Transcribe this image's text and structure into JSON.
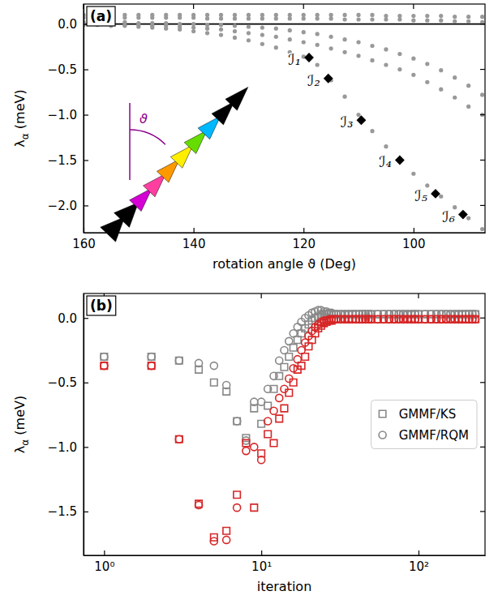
{
  "chart_data": [
    {
      "type": "scatter",
      "panel": "(a)",
      "xlabel": "rotation angle ϑ (Deg)",
      "ylabel": "λα (meV)",
      "inset_label": "ϑ",
      "xlim": [
        160,
        87
      ],
      "ylim": [
        -2.3,
        0.22
      ],
      "xticks": [
        160,
        140,
        120,
        100
      ],
      "yticks": [
        {
          "value": 0,
          "label": "0.0"
        },
        {
          "value": -0.5,
          "label": "−0.5"
        },
        {
          "value": -1,
          "label": "−1.0"
        },
        {
          "value": -1.5,
          "label": "−1.5"
        },
        {
          "value": -2,
          "label": "−2.0"
        }
      ],
      "hline": 0,
      "x": [
        160,
        157.5,
        155,
        152.5,
        150,
        147.5,
        145,
        142.5,
        140,
        137.5,
        135,
        132.5,
        130,
        127.5,
        125,
        122.5,
        120,
        117.5,
        115,
        112.5,
        110,
        107.5,
        105,
        102.5,
        100,
        97.5,
        95,
        92.5,
        90,
        87.5
      ],
      "series": [
        {
          "color": "#999999",
          "marker": "dot",
          "values": [
            0.1,
            0.1,
            0.1,
            0.1,
            0.1,
            0.1,
            0.1,
            0.1,
            0.1,
            0.1,
            0.1,
            0.1,
            0.1,
            0.1,
            0.1,
            0.1,
            0.1,
            0.1,
            0.1,
            0.1,
            0.1,
            0.1,
            0.09,
            0.09,
            0.09,
            0.09,
            0.09,
            0.08,
            0.08,
            0.08
          ]
        },
        {
          "color": "#999999",
          "marker": "dot",
          "values": [
            0.07,
            0.07,
            0.07,
            0.07,
            0.07,
            0.07,
            0.07,
            0.07,
            0.07,
            0.06,
            0.06,
            0.06,
            0.06,
            0.06,
            0.06,
            0.06,
            0.06,
            0.06,
            0.06,
            0.05,
            0.05,
            0.05,
            0.05,
            0.05,
            0.04,
            0.04,
            0.04,
            0.03,
            0.03,
            0.02
          ]
        },
        {
          "color": "#999999",
          "marker": "dot",
          "values": [
            0.02,
            0.02,
            0.02,
            0.02,
            0.01,
            0.01,
            0.01,
            0,
            0,
            -0.01,
            -0.01,
            -0.02,
            -0.03,
            -0.04,
            -0.05,
            -0.07,
            -0.09,
            -0.11,
            -0.14,
            -0.17,
            -0.2,
            -0.24,
            -0.28,
            -0.33,
            -0.38,
            -0.44,
            -0.51,
            -0.59,
            -0.68,
            -0.78
          ]
        },
        {
          "color": "#999999",
          "marker": "dot",
          "values": [
            0,
            0,
            0,
            -0.01,
            -0.01,
            -0.02,
            -0.02,
            -0.03,
            -0.04,
            -0.05,
            -0.06,
            -0.08,
            -0.1,
            -0.12,
            -0.14,
            -0.17,
            -0.2,
            -0.23,
            -0.27,
            -0.31,
            -0.35,
            -0.4,
            -0.45,
            -0.5,
            -0.56,
            -0.64,
            -0.72,
            -0.81,
            -0.91,
            -1.0
          ]
        },
        {
          "color": "#999999",
          "marker": "dot",
          "values": [
            -0.01,
            -0.01,
            -0.02,
            -0.02,
            -0.03,
            -0.04,
            -0.05,
            -0.06,
            -0.08,
            -0.1,
            -0.12,
            -0.15,
            -0.18,
            -0.22,
            -0.26,
            -0.31,
            -0.36,
            -0.45,
            -0.62,
            -0.8,
            -1.0,
            -1.18,
            -1.35,
            -1.5,
            -1.65,
            -1.78,
            -1.9,
            -2.02,
            -2.14,
            -2.26
          ]
        },
        {
          "color": "#000000",
          "marker": "diamond",
          "x": [
            119,
            115.5,
            109.5,
            102.5,
            96,
            91
          ],
          "values": [
            -0.37,
            -0.6,
            -1.06,
            -1.5,
            -1.87,
            -2.1
          ],
          "labels": [
            "ℐ₁",
            "ℐ₂",
            "ℐ₃",
            "ℐ₄",
            "ℐ₅",
            "ℐ₆"
          ]
        }
      ]
    },
    {
      "type": "scatter",
      "panel": "(b)",
      "xlabel": "iteration",
      "ylabel": "λα (meV)",
      "log": "x",
      "legend": "right",
      "xlim": [
        0.74,
        265
      ],
      "ylim": [
        -1.84,
        0.19
      ],
      "xticks": [
        {
          "value": 1,
          "label": "10⁰"
        },
        {
          "value": 10,
          "label": "10¹"
        },
        {
          "value": 100,
          "label": "10²"
        }
      ],
      "yticks": [
        {
          "value": 0,
          "label": "0.0"
        },
        {
          "value": -0.5,
          "label": "−0.5"
        },
        {
          "value": -1,
          "label": "−1.0"
        },
        {
          "value": -1.5,
          "label": "−1.5"
        }
      ],
      "x": [
        1,
        2,
        3,
        4,
        5,
        6,
        7,
        8,
        9,
        10,
        11,
        12,
        13,
        14,
        15,
        16,
        17,
        18,
        19,
        20,
        21,
        22,
        23,
        24,
        25,
        26,
        27,
        28,
        29,
        30,
        32,
        34,
        36,
        38,
        40,
        42,
        44,
        46,
        48,
        50,
        55,
        60,
        65,
        70,
        75,
        80,
        85,
        90,
        95,
        100,
        110,
        120,
        130,
        140,
        150,
        160,
        170,
        180,
        190,
        200,
        210,
        220,
        230
      ],
      "series": [
        {
          "name": "GMMF/KS",
          "color": "#888888",
          "marker": "square",
          "values": [
            -0.3,
            -0.3,
            -0.33,
            -0.4,
            -0.5,
            -0.57,
            -0.8,
            -0.93,
            -0.7,
            -0.82,
            -0.68,
            -0.55,
            -0.45,
            -0.38,
            -0.3,
            -0.23,
            -0.17,
            -0.12,
            -0.08,
            -0.05,
            -0.02,
            0,
            0.01,
            0.02,
            0.03,
            0.03,
            0.03,
            0.03,
            0.03,
            0.03,
            0.03,
            0.03,
            0.03,
            0.03,
            0.03,
            0.03,
            0.03,
            0.03,
            0.03,
            0.03,
            0.03,
            0.03,
            0.03,
            0.03,
            0.03,
            0.03,
            0.03,
            0.03,
            0.03,
            0.03,
            0.03,
            0.03,
            0.03,
            0.03,
            0.03,
            0.03,
            0.03,
            0.03,
            0.03,
            0.03,
            0.03,
            0.03,
            0.03
          ]
        },
        {
          "name": "GMMF/RQM",
          "color": "#888888",
          "marker": "circle",
          "values": [
            -0.3,
            -0.3,
            -0.33,
            -0.35,
            -0.37,
            -0.52,
            -0.8,
            -0.95,
            -0.65,
            -0.65,
            -0.55,
            -0.45,
            -0.33,
            -0.25,
            -0.18,
            -0.12,
            -0.07,
            -0.03,
            0,
            0.02,
            0.04,
            0.05,
            0.06,
            0.06,
            0.05,
            0.05,
            0.04,
            0.04,
            0.03,
            0.03,
            0.03,
            0.03,
            0.03,
            0.03,
            0.03,
            0.03,
            0.03,
            0.03,
            0.03,
            0.03,
            0.03,
            0.03,
            0.03,
            0.03,
            0.03,
            0.03,
            0.03,
            0.03,
            0.03,
            0.03,
            0.03,
            0.03,
            0.03,
            0.03,
            0.03,
            0.03,
            0.03,
            0.03,
            0.03,
            0.03,
            0.03,
            0.03,
            0.03
          ]
        },
        {
          "color": "#d62728",
          "marker": "square",
          "values": [
            -0.37,
            -0.37,
            -0.94,
            -1.44,
            -1.7,
            -1.65,
            -1.37,
            -0.97,
            -1.47,
            -1.05,
            -0.9,
            -0.97,
            -0.78,
            -0.7,
            -0.58,
            -0.5,
            -0.4,
            -0.37,
            -0.3,
            -0.22,
            -0.17,
            -0.12,
            -0.08,
            -0.06,
            -0.04,
            -0.03,
            -0.02,
            -0.02,
            -0.01,
            -0.01,
            -0.01,
            -0.01,
            -0.01,
            -0.01,
            -0.01,
            -0.01,
            -0.01,
            -0.01,
            -0.01,
            -0.01,
            -0.01,
            -0.01,
            -0.01,
            -0.01,
            -0.01,
            -0.01,
            -0.01,
            -0.01,
            -0.01,
            -0.01,
            -0.01,
            -0.01,
            -0.01,
            -0.01,
            -0.01,
            -0.01,
            -0.01,
            -0.01,
            -0.01,
            -0.01,
            -0.01,
            -0.01,
            -0.01
          ]
        },
        {
          "color": "#d62728",
          "marker": "circle",
          "values": [
            -0.37,
            -0.37,
            -0.94,
            -1.45,
            -1.73,
            -1.72,
            -1.47,
            -1.03,
            -1.0,
            -1.1,
            -0.8,
            -0.72,
            -0.62,
            -0.55,
            -0.47,
            -0.39,
            -0.32,
            -0.25,
            -0.19,
            -0.14,
            -0.1,
            -0.07,
            -0.05,
            -0.03,
            -0.02,
            -0.02,
            -0.01,
            -0.01,
            -0.01,
            -0.01,
            -0.01,
            -0.01,
            -0.01,
            -0.01,
            -0.01,
            -0.01,
            -0.01,
            -0.01,
            -0.01,
            -0.01,
            -0.01,
            -0.01,
            -0.01,
            -0.01,
            -0.01,
            -0.01,
            -0.01,
            -0.01,
            -0.01,
            -0.01,
            -0.01,
            -0.01,
            -0.01,
            -0.01,
            -0.01,
            -0.01,
            -0.01,
            -0.01,
            -0.01,
            -0.01,
            -0.01,
            -0.01,
            -0.01
          ]
        }
      ]
    }
  ]
}
